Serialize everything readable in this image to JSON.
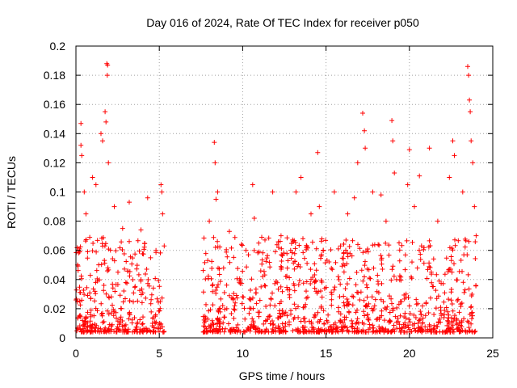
{
  "chart_data": {
    "type": "scatter",
    "title": "Day 016 of 2024, Rate Of TEC Index for receiver p050",
    "xlabel": "GPS time / hours",
    "ylabel": "ROTI / TECUs",
    "xlim": [
      0,
      25
    ],
    "ylim": [
      0,
      0.2
    ],
    "x_ticks": [
      0,
      5,
      10,
      15,
      20,
      25
    ],
    "x_tick_labels": [
      "0",
      "5",
      "10",
      "15",
      "20",
      "25"
    ],
    "y_ticks": [
      0,
      0.02,
      0.04,
      0.06,
      0.08,
      0.1,
      0.12,
      0.14,
      0.16,
      0.18,
      0.2
    ],
    "y_tick_labels": [
      "0",
      "0.02",
      "0.04",
      "0.06",
      "0.08",
      "0.1",
      "0.12",
      "0.14",
      "0.16",
      "0.18",
      "0.2"
    ],
    "grid": true,
    "marker": "+",
    "color": "#ff0000",
    "data_gap_hours": [
      5.3,
      7.6
    ],
    "series": [
      {
        "name": "ROTI",
        "points": [
          [
            0.3,
            0.147
          ],
          [
            0.3,
            0.132
          ],
          [
            0.35,
            0.125
          ],
          [
            0.1,
            0.05
          ],
          [
            0.5,
            0.1
          ],
          [
            0.6,
            0.085
          ],
          [
            1.0,
            0.11
          ],
          [
            1.2,
            0.105
          ],
          [
            1.5,
            0.14
          ],
          [
            1.6,
            0.135
          ],
          [
            1.75,
            0.155
          ],
          [
            1.8,
            0.148
          ],
          [
            1.85,
            0.188
          ],
          [
            1.9,
            0.187
          ],
          [
            1.88,
            0.18
          ],
          [
            1.95,
            0.12
          ],
          [
            2.3,
            0.09
          ],
          [
            2.8,
            0.075
          ],
          [
            3.2,
            0.093
          ],
          [
            3.9,
            0.074
          ],
          [
            4.3,
            0.096
          ],
          [
            4.8,
            0.06
          ],
          [
            5.1,
            0.105
          ],
          [
            5.15,
            0.1
          ],
          [
            5.2,
            0.085
          ],
          [
            8.0,
            0.08
          ],
          [
            8.3,
            0.134
          ],
          [
            8.35,
            0.12
          ],
          [
            8.4,
            0.095
          ],
          [
            8.5,
            0.1
          ],
          [
            9.2,
            0.073
          ],
          [
            10.2,
            0.06
          ],
          [
            10.6,
            0.105
          ],
          [
            10.7,
            0.082
          ],
          [
            11.8,
            0.1
          ],
          [
            12.3,
            0.07
          ],
          [
            13.2,
            0.1
          ],
          [
            13.5,
            0.11
          ],
          [
            14.1,
            0.085
          ],
          [
            14.5,
            0.127
          ],
          [
            14.6,
            0.09
          ],
          [
            15.5,
            0.1
          ],
          [
            16.3,
            0.085
          ],
          [
            16.7,
            0.096
          ],
          [
            16.9,
            0.12
          ],
          [
            17.2,
            0.154
          ],
          [
            17.3,
            0.142
          ],
          [
            17.35,
            0.13
          ],
          [
            17.8,
            0.1
          ],
          [
            18.3,
            0.098
          ],
          [
            18.6,
            0.08
          ],
          [
            18.95,
            0.149
          ],
          [
            19.0,
            0.135
          ],
          [
            19.1,
            0.113
          ],
          [
            19.9,
            0.105
          ],
          [
            20.0,
            0.129
          ],
          [
            20.3,
            0.09
          ],
          [
            20.6,
            0.111
          ],
          [
            21.2,
            0.13
          ],
          [
            21.7,
            0.08
          ],
          [
            22.4,
            0.11
          ],
          [
            22.6,
            0.135
          ],
          [
            22.7,
            0.125
          ],
          [
            23.2,
            0.1
          ],
          [
            23.5,
            0.186
          ],
          [
            23.55,
            0.18
          ],
          [
            23.6,
            0.163
          ],
          [
            23.65,
            0.155
          ],
          [
            23.7,
            0.135
          ],
          [
            23.8,
            0.12
          ],
          [
            23.9,
            0.09
          ],
          [
            24.0,
            0.07
          ]
        ]
      }
    ]
  }
}
